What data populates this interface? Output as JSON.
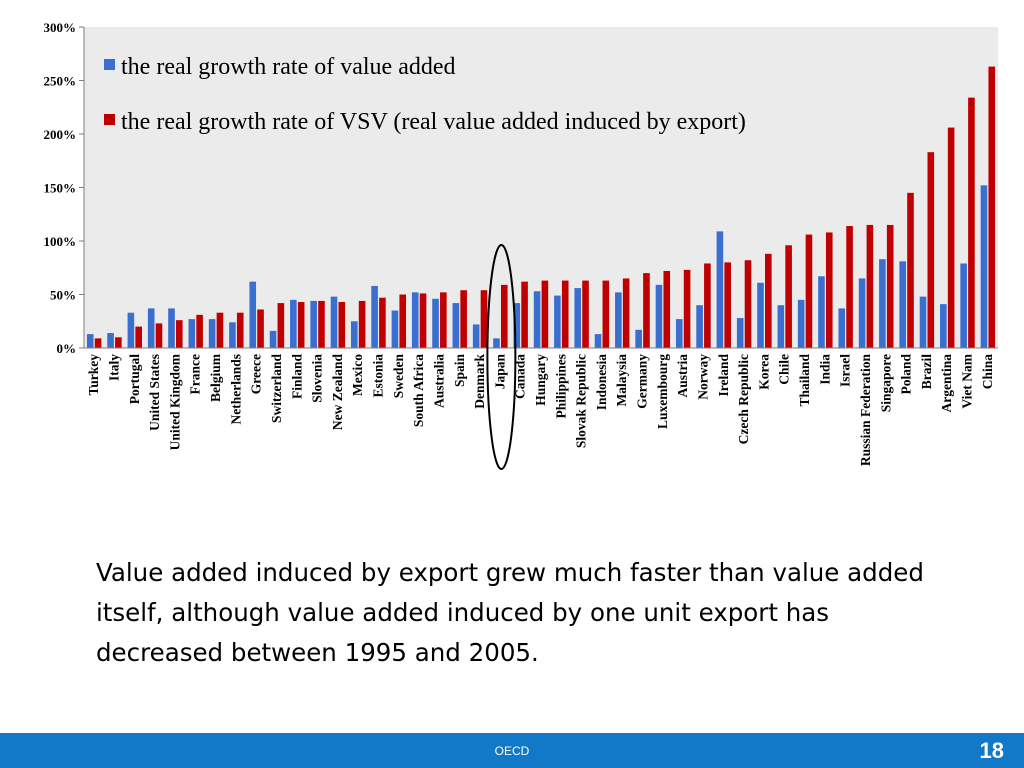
{
  "chart_data": {
    "type": "bar",
    "yticks": [
      "0%",
      "50%",
      "100%",
      "150%",
      "200%",
      "250%",
      "300%"
    ],
    "ylim": [
      0,
      300
    ],
    "grid": false,
    "legend_position": "top-left, inside plot",
    "categories": [
      "Turkey",
      "Italy",
      "Portugal",
      "United States",
      "United Kingdom",
      "France",
      "Belgium",
      "Netherlands",
      "Greece",
      "Switzerland",
      "Finland",
      "Slovenia",
      "New Zealand",
      "Mexico",
      "Estonia",
      "Sweden",
      "South Africa",
      "Australia",
      "Spain",
      "Denmark",
      "Japan",
      "Canada",
      "Hungary",
      "Philippines",
      "Slovak Republic",
      "Indonesia",
      "Malaysia",
      "Germany",
      "Luxembourg",
      "Austria",
      "Norway",
      "Ireland",
      "Czech Republic",
      "Korea",
      "Chile",
      "Thailand",
      "India",
      "Israel",
      "Russian Federation",
      "Singapore",
      "Poland",
      "Brazil",
      "Argentina",
      "Viet Nam",
      "China"
    ],
    "series": [
      {
        "name": "the real growth rate of value added",
        "color": "#3A6FD0",
        "values": [
          13,
          14,
          33,
          37,
          37,
          27,
          27,
          24,
          62,
          16,
          45,
          44,
          48,
          25,
          58,
          35,
          52,
          46,
          42,
          22,
          9,
          42,
          53,
          49,
          56,
          13,
          52,
          17,
          59,
          27,
          40,
          109,
          28,
          61,
          40,
          45,
          67,
          37,
          65,
          83,
          81,
          48,
          41,
          79,
          152
        ]
      },
      {
        "name": "the real growth rate of VSV (real value added induced by export)",
        "color": "#C00000",
        "values": [
          9,
          10,
          20,
          23,
          26,
          31,
          33,
          33,
          36,
          42,
          43,
          44,
          43,
          44,
          47,
          50,
          51,
          52,
          54,
          54,
          59,
          62,
          63,
          63,
          63,
          63,
          65,
          70,
          72,
          73,
          79,
          80,
          82,
          88,
          96,
          106,
          108,
          114,
          115,
          115,
          145,
          183,
          206,
          234,
          263
        ]
      }
    ],
    "highlight": {
      "category": "Japan",
      "shape": "ellipse",
      "color": "#000000"
    }
  },
  "caption": "Value added induced by export grew much faster than value added itself, although value added induced by one unit export has decreased between 1995 and 2005.",
  "footer": {
    "label": "OECD",
    "page_number": "18",
    "bar_color": "#1278C8"
  }
}
